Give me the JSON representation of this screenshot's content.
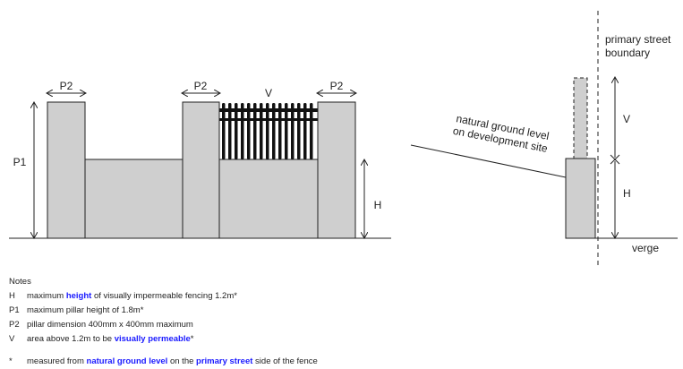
{
  "diagram": {
    "labels": {
      "p2_left": "P2",
      "p2_mid": "P2",
      "p2_right": "P2",
      "v_top": "V",
      "p1": "P1",
      "h_front": "H",
      "primary_street_boundary_line1": "primary street",
      "primary_street_boundary_line2": "boundary",
      "natural_ground_line1": "natural ground level",
      "natural_ground_line2": "on development site",
      "v_side": "V",
      "h_side": "H",
      "verge": "verge"
    },
    "colors": {
      "pillar_fill": "#cfcfcf",
      "outline": "#222222",
      "railing": "#111111",
      "highlight": "#1a1aff"
    }
  },
  "notes": {
    "title": "Notes",
    "items": [
      {
        "symbol": "H",
        "before": "maximum ",
        "highlight": "height",
        "after": " of visually impermeable fencing 1.2m*"
      },
      {
        "symbol": "P1",
        "before": "maximum pillar height of 1.8m*",
        "highlight": "",
        "after": ""
      },
      {
        "symbol": "P2",
        "before": "pillar dimension 400mm x 400mm maximum",
        "highlight": "",
        "after": ""
      },
      {
        "symbol": "V",
        "before": "area above 1.2m to be ",
        "highlight": "visually permeable",
        "after": "*"
      }
    ],
    "footnote": {
      "symbol": "*",
      "before": "measured from ",
      "highlight1": "natural ground level",
      "middle": " on the ",
      "highlight2": "primary street",
      "after": " side of the fence"
    }
  }
}
